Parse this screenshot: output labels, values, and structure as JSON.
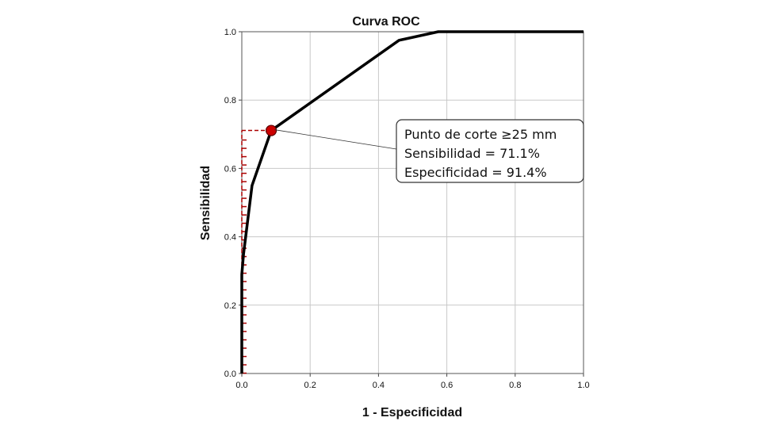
{
  "chart_data": {
    "type": "line",
    "title": "Curva ROC",
    "xlabel": "1 - Especificidad",
    "ylabel": "Sensibilidad",
    "xlim": [
      0,
      1
    ],
    "ylim": [
      0,
      1
    ],
    "xticks": [
      "0.0",
      "0.2",
      "0.4",
      "0.6",
      "0.8",
      "1.0"
    ],
    "yticks": [
      "0.0",
      "0.2",
      "0.4",
      "0.6",
      "0.8",
      "1.0"
    ],
    "grid": true,
    "series": [
      {
        "x": [
          0.0,
          0.0,
          0.005,
          0.03,
          0.086,
          0.46,
          0.575,
          1.0
        ],
        "y": [
          0.0,
          0.29,
          0.35,
          0.55,
          0.711,
          0.975,
          1.0,
          1.0
        ],
        "color": "#000000"
      }
    ],
    "cutoff_point": {
      "x": 0.086,
      "y": 0.711,
      "color": "#cc0000"
    },
    "rug_color": "#aa0000",
    "annotation": {
      "lines": [
        "Punto de corte ≥25 mm",
        "Sensibilidad = 71.1%",
        "Especificidad = 91.4%"
      ],
      "position": "right-of-point"
    }
  }
}
